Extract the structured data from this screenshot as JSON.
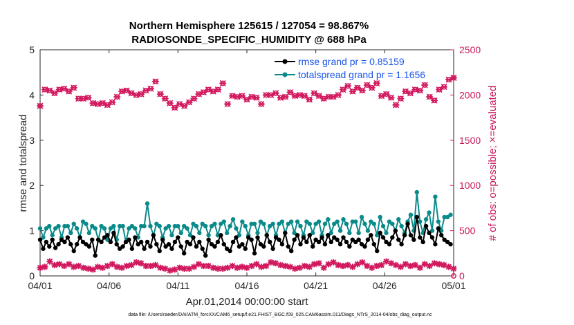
{
  "chart_data": {
    "type": "line",
    "title": [
      "Northern Hemisphere 125615 / 127054 = 98.867%",
      "RADIOSONDE_SPECIFIC_HUMIDITY @ 688 hPa"
    ],
    "xlabel": "Apr.01,2014 00:00:00 start",
    "ylabel_left": "rmse and totalspread",
    "ylabel_right": "# of obs: o=possible; ×=evaluated",
    "xlim": [
      0,
      30
    ],
    "ylim_left": [
      0,
      5
    ],
    "ylim_right": [
      0,
      2500
    ],
    "x_ticks": [
      {
        "pos": 0,
        "label": "04/01"
      },
      {
        "pos": 5,
        "label": "04/06"
      },
      {
        "pos": 10,
        "label": "04/11"
      },
      {
        "pos": 15,
        "label": "04/16"
      },
      {
        "pos": 20,
        "label": "04/21"
      },
      {
        "pos": 25,
        "label": "04/26"
      },
      {
        "pos": 30,
        "label": "05/01"
      }
    ],
    "y_ticks_left": [
      "0",
      "1",
      "2",
      "3",
      "4",
      "5"
    ],
    "y_ticks_right": [
      "0",
      "500",
      "1000",
      "1500",
      "2000",
      "2500"
    ],
    "legend": [
      "rmse grand pr = 0.85159",
      "totalspread grand pr = 1.1656"
    ],
    "colors": {
      "rmse": "#000000",
      "spread": "#0b8a8a",
      "obs": "#d1185e",
      "legend_text": "#1a55e8"
    },
    "footnote": "data file: /Users/raeder/DAI/ATM_forcXX/CAM6_setup/f.e21.FHIST_BGC.f09_025.CAM6assim.011/Diags_NTrS_2014-04/obs_diag_output.nc",
    "series": [
      {
        "name": "rmse",
        "values": [
          0.8,
          0.6,
          0.75,
          0.65,
          0.8,
          0.62,
          0.7,
          0.8,
          0.75,
          0.85,
          0.7,
          0.55,
          0.7,
          0.85,
          0.75,
          0.7,
          0.65,
          0.8,
          0.45,
          0.8,
          0.75,
          0.85,
          0.9,
          0.75,
          0.95,
          0.7,
          0.6,
          0.65,
          0.75,
          0.8,
          0.6,
          0.85,
          0.7,
          0.75,
          0.6,
          0.75,
          0.65,
          0.9,
          0.7,
          0.55,
          0.8,
          0.65,
          0.7,
          0.6,
          0.75,
          0.85,
          0.65,
          0.5,
          0.75,
          0.7,
          0.85,
          0.65,
          0.75,
          0.6,
          0.45,
          0.8,
          0.7,
          0.65,
          0.75,
          0.9,
          0.7,
          0.6,
          0.55,
          0.75,
          0.85,
          0.65,
          0.7,
          0.6,
          0.85,
          0.8,
          0.5,
          0.85,
          0.7,
          0.65,
          0.9,
          0.75,
          0.6,
          0.85,
          0.8,
          0.7,
          0.95,
          0.65,
          0.55,
          0.8,
          0.9,
          0.7,
          0.85,
          0.75,
          0.9,
          0.65,
          0.8,
          0.75,
          0.85,
          0.7,
          0.9,
          0.75,
          0.85,
          0.8,
          0.7,
          0.85,
          0.75,
          0.65,
          0.8,
          0.75,
          0.8,
          0.7,
          0.65,
          0.8,
          0.9,
          0.7,
          0.55,
          0.95,
          0.85,
          0.75,
          0.7,
          0.85,
          1.0,
          0.8,
          0.7,
          0.9,
          1.15,
          0.9,
          0.8,
          1.3,
          0.85,
          0.75,
          1.1,
          0.95,
          0.85,
          0.7,
          1.05,
          0.9,
          0.8,
          0.75,
          0.7
        ],
        "x_start": 0,
        "x_step": 0.2222
      },
      {
        "name": "totalspread",
        "values": [
          1.05,
          0.85,
          1.05,
          1.1,
          0.9,
          1.05,
          1.1,
          0.85,
          1.1,
          1.1,
          0.95,
          1.15,
          1.05,
          0.85,
          1.2,
          1.15,
          0.95,
          1.1,
          1.05,
          0.8,
          1.1,
          1.05,
          0.8,
          1.05,
          1.1,
          0.8,
          1.1,
          1.1,
          0.75,
          1.05,
          1.1,
          1.05,
          0.85,
          1.1,
          1.1,
          1.6,
          1.1,
          0.9,
          1.15,
          1.1,
          0.85,
          1.05,
          1.1,
          0.9,
          1.1,
          1.1,
          0.95,
          1.1,
          1.05,
          0.9,
          1.15,
          1.1,
          0.95,
          1.15,
          1.1,
          0.9,
          1.1,
          1.15,
          0.9,
          1.15,
          1.2,
          0.95,
          1.1,
          1.25,
          1.05,
          0.9,
          1.2,
          1.1,
          0.9,
          1.15,
          1.15,
          0.95,
          1.2,
          1.15,
          0.9,
          1.1,
          1.15,
          0.9,
          1.15,
          1.2,
          0.95,
          1.15,
          1.2,
          0.95,
          1.2,
          1.1,
          0.9,
          1.2,
          1.15,
          0.95,
          1.15,
          1.2,
          0.9,
          1.15,
          1.25,
          0.95,
          1.15,
          1.2,
          1.0,
          1.25,
          1.15,
          0.95,
          1.2,
          1.2,
          0.95,
          1.3,
          1.15,
          1.0,
          1.2,
          1.15,
          0.9,
          1.3,
          1.1,
          0.95,
          1.2,
          1.15,
          1.0,
          1.25,
          1.1,
          0.95,
          1.2,
          1.35,
          1.0,
          1.85,
          1.2,
          0.95,
          1.25,
          1.4,
          1.0,
          1.75,
          1.2,
          1.0,
          1.3,
          1.3,
          1.35
        ],
        "x_start": 0,
        "x_step": 0.2222
      },
      {
        "name": "obs_possible",
        "values": [
          1880,
          2060,
          2050,
          2020,
          2060,
          2070,
          2040,
          2080,
          1960,
          1960,
          1970,
          1910,
          1900,
          1910,
          1890,
          1920,
          1980,
          2040,
          2050,
          2020,
          2000,
          2010,
          2050,
          2070,
          2150,
          2010,
          1960,
          1910,
          1860,
          1900,
          1880,
          1920,
          1960,
          2010,
          2030,
          2060,
          2040,
          2060,
          2130,
          1900,
          1990,
          1980,
          1990,
          1950,
          1980,
          1970,
          1900,
          2000,
          2000,
          2020,
          1970,
          1980,
          2030,
          1990,
          2000,
          1990,
          1950,
          2020,
          1990,
          1960,
          1980,
          1980,
          2000,
          2060,
          2100,
          2040,
          2080,
          2050,
          2110,
          2080,
          2130,
          1990,
          2010,
          1970,
          1890,
          1960,
          2040,
          2020,
          2060,
          2050,
          2110,
          1980,
          1940,
          2060,
          2090,
          2170,
          2190
        ],
        "x_start": 0,
        "x_step": 0.3488
      },
      {
        "name": "obs_evaluated",
        "values": [
          90,
          100,
          160,
          120,
          130,
          110,
          130,
          100,
          110,
          90,
          80,
          70,
          100,
          90,
          110,
          130,
          100,
          90,
          110,
          120,
          150,
          140,
          110,
          110,
          120,
          90,
          80,
          60,
          70,
          90,
          80,
          80,
          100,
          130,
          110,
          110,
          90,
          80,
          80,
          90,
          110,
          90,
          100,
          90,
          110,
          130,
          100,
          110,
          150,
          140,
          120,
          110,
          100,
          80,
          90,
          110,
          100,
          130,
          140,
          90,
          130,
          150,
          120,
          110,
          120,
          100,
          130,
          150,
          110,
          90,
          110,
          120,
          160,
          140,
          120,
          100,
          130,
          110,
          120,
          90,
          130,
          110,
          140,
          130,
          120,
          100,
          80
        ],
        "x_start": 0,
        "x_step": 0.3488
      }
    ]
  }
}
